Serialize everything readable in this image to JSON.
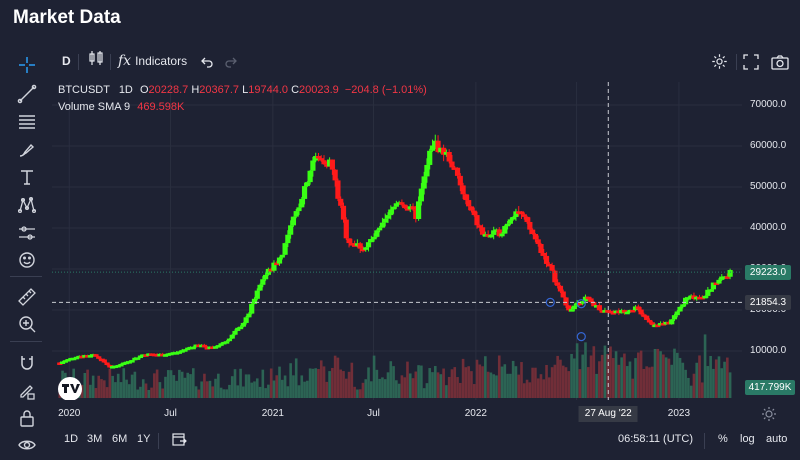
{
  "page_title": "Market Data",
  "toolbar": {
    "interval": "D",
    "indicators_label": "Indicators"
  },
  "legend": {
    "symbol": "BTCUSDT",
    "interval": "1D",
    "o_label": "O",
    "o_value": "20228.7",
    "h_label": "H",
    "h_value": "20367.7",
    "l_label": "L",
    "l_value": "19744.0",
    "c_label": "C",
    "c_value": "20023.9",
    "change": "−204.8 (−1.01%)",
    "volume_label": "Volume SMA 9",
    "volume_value": "469.598K"
  },
  "price_tags": {
    "last_price": "29223.0",
    "crosshair_price": "21854.3",
    "volume_last": "417.799K",
    "crosshair_date": "27 Aug '22"
  },
  "bottom_bar": {
    "ranges": [
      "1D",
      "3M",
      "6M",
      "1Y"
    ],
    "time": "06:58:11 (UTC)",
    "percent": "%",
    "log": "log",
    "auto": "auto"
  },
  "colors": {
    "background": "#1e2233",
    "up": "#39ff14",
    "down": "#ff1a1a",
    "volume_up": "#2e6b58",
    "volume_down": "#7a3038",
    "last_price_tag": "#2a7a66",
    "crosshair_tag": "#363a45"
  },
  "chart_data": {
    "type": "candlestick",
    "title": "",
    "symbol": "BTCUSDT",
    "interval": "1D",
    "xlabel": "",
    "ylabel": "",
    "ylim": [
      0,
      75000
    ],
    "y_ticks": [
      10000,
      20000,
      30000,
      40000,
      50000,
      60000,
      70000
    ],
    "y_tick_labels": [
      "10000.0",
      "20000.0",
      "30000.0",
      "40000.0",
      "50000.0",
      "60000.0",
      "70000.0"
    ],
    "x_ticks": [
      "2020-01-01",
      "2020-07-01",
      "2021-01-01",
      "2021-07-01",
      "2022-01-01",
      "2022-07-01",
      "2023-01-01"
    ],
    "x_tick_labels": [
      "2020",
      "Jul",
      "2021",
      "Jul",
      "2022",
      "",
      "2023"
    ],
    "x_range": [
      "2019-12-01",
      "2023-04-10"
    ],
    "grid": true,
    "crosshair": {
      "date": "2022-08-27",
      "price": 21854.3
    },
    "last_price": 29223.0,
    "series": [
      {
        "name": "BTCUSDT",
        "date": [
          "2019-12-15",
          "2020-01-15",
          "2020-02-15",
          "2020-03-15",
          "2020-04-15",
          "2020-05-15",
          "2020-06-15",
          "2020-07-15",
          "2020-08-15",
          "2020-09-15",
          "2020-10-15",
          "2020-11-15",
          "2020-12-15",
          "2021-01-15",
          "2021-02-15",
          "2021-03-15",
          "2021-04-15",
          "2021-05-15",
          "2021-06-15",
          "2021-07-15",
          "2021-08-15",
          "2021-09-15",
          "2021-10-15",
          "2021-11-15",
          "2021-12-15",
          "2022-01-15",
          "2022-02-15",
          "2022-03-15",
          "2022-04-15",
          "2022-05-15",
          "2022-06-15",
          "2022-07-15",
          "2022-08-15",
          "2022-09-15",
          "2022-10-15",
          "2022-11-15",
          "2022-12-15",
          "2023-01-15",
          "2023-02-15",
          "2023-03-15",
          "2023-04-05"
        ],
        "close": [
          7200,
          8800,
          9200,
          6000,
          7500,
          9300,
          9200,
          9800,
          11500,
          10800,
          13000,
          18000,
          28000,
          33000,
          45000,
          57000,
          56000,
          37000,
          35000,
          40000,
          47000,
          43000,
          61000,
          57000,
          46000,
          38000,
          39000,
          45000,
          38000,
          30000,
          20000,
          23000,
          20000,
          19500,
          20500,
          16500,
          16800,
          23000,
          23500,
          28000,
          29200
        ]
      }
    ],
    "volume": {
      "name": "Volume",
      "sma_label": "Volume SMA 9",
      "sma_value": "469.598K",
      "last_value": "417.799K"
    }
  }
}
